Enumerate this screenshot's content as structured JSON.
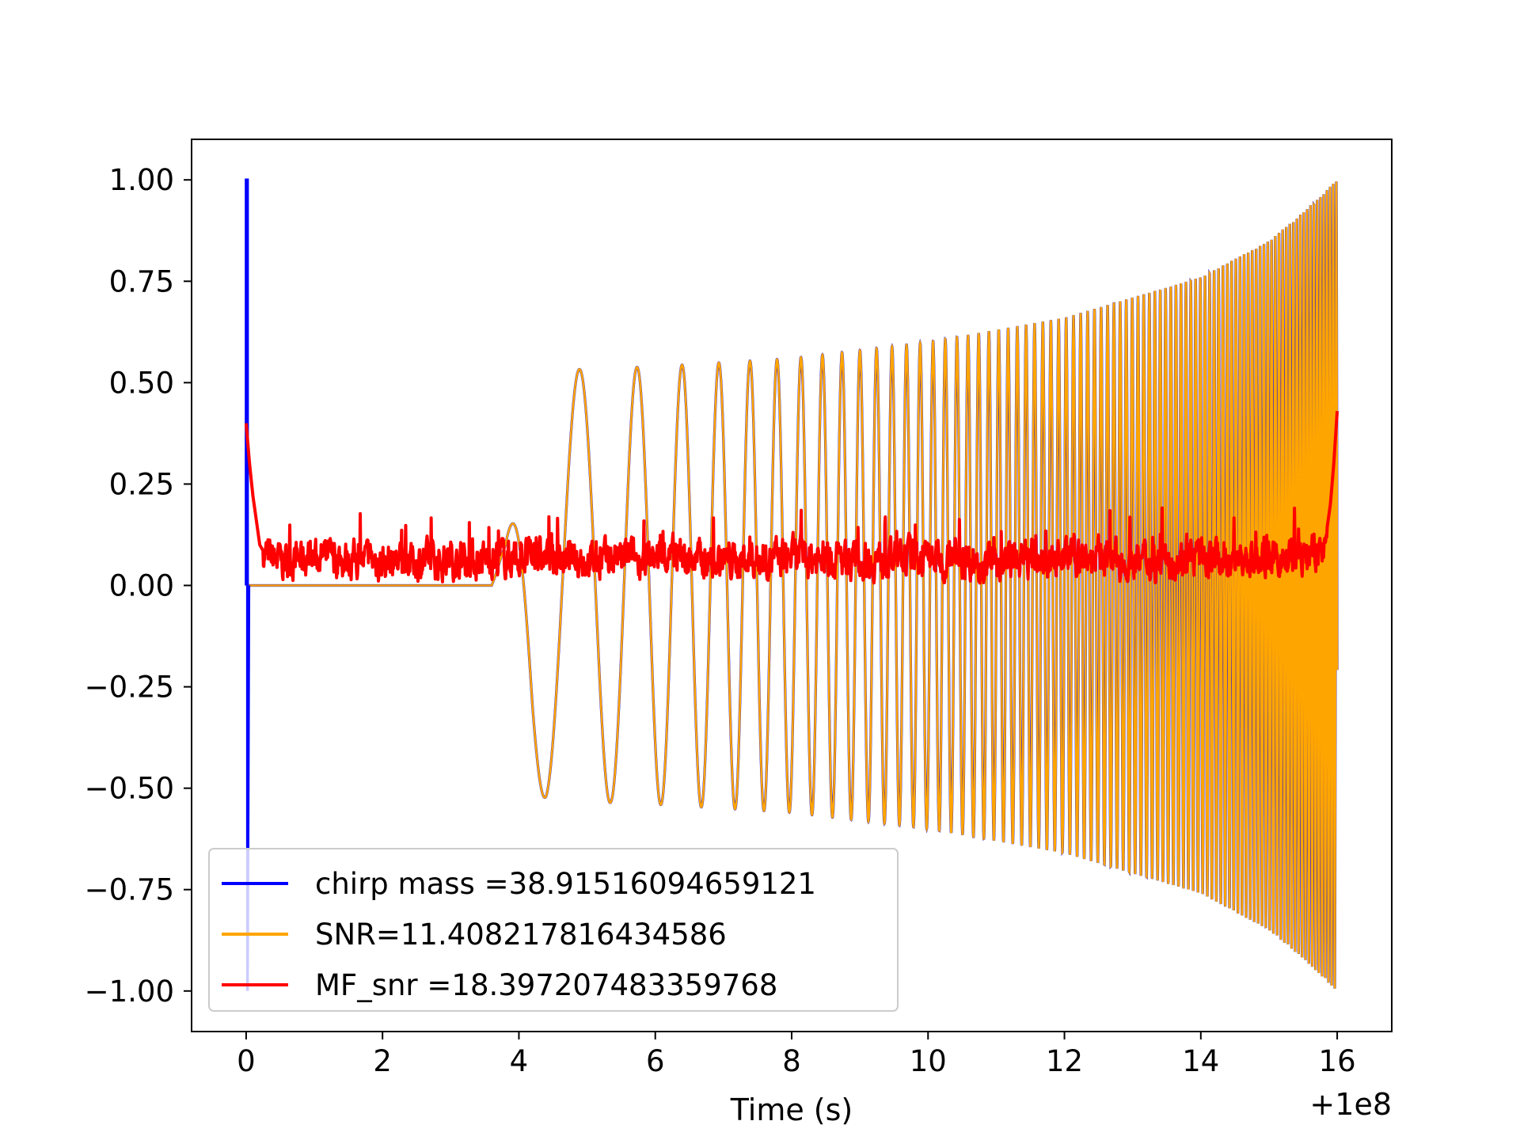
{
  "chart_data": {
    "type": "line",
    "title": "",
    "xlabel": "Time (s)",
    "ylabel": "",
    "x_offset_label": "+1e8",
    "xlim": [
      -0.8,
      16.8
    ],
    "ylim": [
      -1.1,
      1.1
    ],
    "xticks": [
      0,
      2,
      4,
      6,
      8,
      10,
      12,
      14,
      16
    ],
    "xtick_labels": [
      "0",
      "2",
      "4",
      "6",
      "8",
      "10",
      "12",
      "14",
      "16"
    ],
    "yticks": [
      1.0,
      0.75,
      0.5,
      0.25,
      0.0,
      -0.25,
      -0.5,
      -0.75,
      -1.0
    ],
    "ytick_labels": [
      "1.00",
      "0.75",
      "0.50",
      "0.25",
      "0.00",
      "−0.25",
      "−0.50",
      "−0.75",
      "−1.00"
    ],
    "grid": false,
    "legend_position": "lower-left",
    "series": [
      {
        "name": "chirp mass =38.91516094659121",
        "color": "#0000ff",
        "description_points": {
          "x": [
            0.0,
            0.0,
            0.02,
            0.02,
            0.04
          ],
          "y": [
            0.0,
            1.0,
            1.0,
            -1.0,
            0.0
          ]
        }
      },
      {
        "name": "SNR=11.408217816434586",
        "color": "#ffa500",
        "envelope": {
          "x": [
            0.0,
            3.6,
            3.8,
            4.0,
            4.2,
            4.4,
            6.0,
            8.0,
            10.0,
            12.0,
            14.0,
            15.0,
            15.5,
            16.0
          ],
          "y": [
            0.0,
            0.0,
            0.1,
            0.3,
            0.48,
            0.53,
            0.54,
            0.56,
            0.6,
            0.66,
            0.76,
            0.85,
            0.92,
            1.0
          ]
        }
      },
      {
        "name": "MF_snr =18.397207483359768",
        "color": "#ff0000",
        "points": {
          "x": [
            0.0,
            0.05,
            0.1,
            0.15,
            0.2,
            0.3,
            0.5,
            1.0,
            2.0,
            3.0,
            4.0,
            5.0,
            6.0,
            7.0,
            8.0,
            9.0,
            10.0,
            11.0,
            12.0,
            13.0,
            14.0,
            15.0,
            15.8,
            15.9,
            15.95,
            16.0
          ],
          "y": [
            0.4,
            0.3,
            0.22,
            0.16,
            0.1,
            0.07,
            0.06,
            0.07,
            0.06,
            0.06,
            0.07,
            0.06,
            0.07,
            0.06,
            0.07,
            0.06,
            0.07,
            0.06,
            0.07,
            0.06,
            0.07,
            0.06,
            0.08,
            0.2,
            0.3,
            0.43
          ]
        }
      }
    ]
  }
}
